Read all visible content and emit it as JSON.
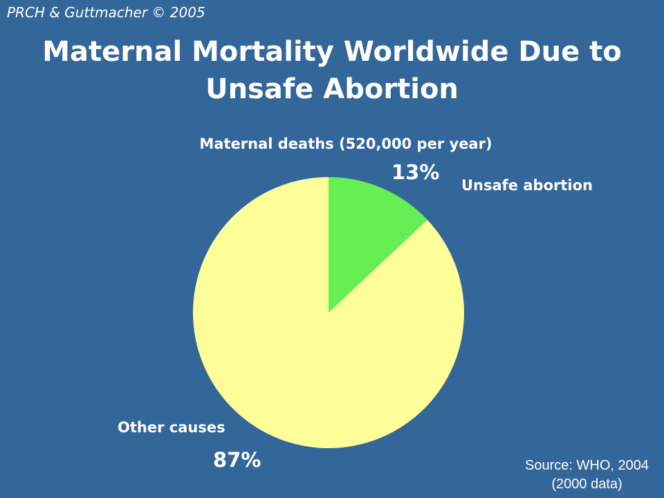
{
  "header": {
    "copyright": "PRCH & Guttmacher © 2005",
    "title_line1": "Maternal Mortality Worldwide Due to",
    "title_line2": "Unsafe Abortion"
  },
  "chart_data": {
    "type": "pie",
    "title": "Maternal deaths (520,000 per year)",
    "slices": [
      {
        "label": "Unsafe abortion",
        "value": 13,
        "value_label": "13%",
        "color": "#66ee55"
      },
      {
        "label": "Other causes",
        "value": 87,
        "value_label": "87%",
        "color": "#ffff99"
      }
    ]
  },
  "footer": {
    "source_line1": "Source: WHO, 2004",
    "source_line2": "(2000 data)"
  }
}
